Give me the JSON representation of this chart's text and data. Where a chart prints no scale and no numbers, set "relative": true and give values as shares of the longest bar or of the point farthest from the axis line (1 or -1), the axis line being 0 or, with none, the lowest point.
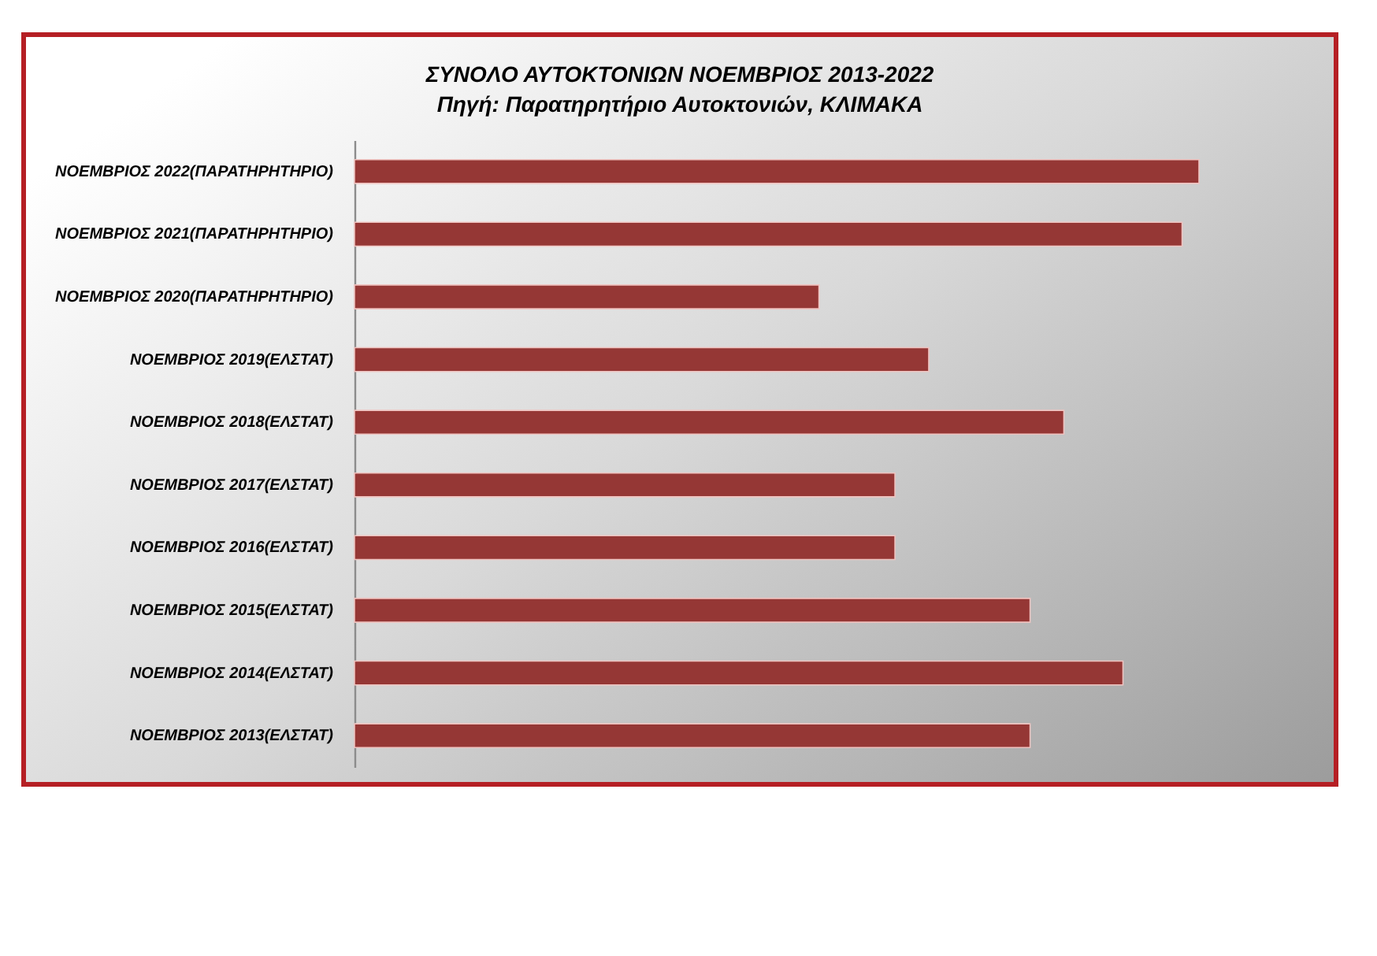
{
  "chart_data": {
    "type": "bar",
    "orientation": "horizontal",
    "relative": true,
    "title": "ΣΥΝΟΛΟ ΑΥΤΟΚΤΟΝΙΩΝ ΝΟΕΜΒΡΙΟΣ 2013-2022",
    "subtitle": "Πηγή: Παρατηρητήριο Αυτοκτονιών, ΚΛΙΜΑΚΑ",
    "categories": [
      "ΝΟΕΜΒΡΙΟΣ 2022(ΠΑΡΑΤΗΡΗΤΗΡΙΟ)",
      "ΝΟΕΜΒΡΙΟΣ 2021(ΠΑΡΑΤΗΡΗΤΗΡΙΟ)",
      "ΝΟΕΜΒΡΙΟΣ 2020(ΠΑΡΑΤΗΡΗΤΗΡΙΟ)",
      "ΝΟΕΜΒΡΙΟΣ 2019(ΕΛΣΤΑΤ)",
      "ΝΟΕΜΒΡΙΟΣ 2018(ΕΛΣΤΑΤ)",
      "ΝΟΕΜΒΡΙΟΣ 2017(ΕΛΣΤΑΤ)",
      "ΝΟΕΜΒΡΙΟΣ 2016(ΕΛΣΤΑΤ)",
      "ΝΟΕΜΒΡΙΟΣ 2015(ΕΛΣΤΑΤ)",
      "ΝΟΕΜΒΡΙΟΣ 2014(ΕΛΣΤΑΤ)",
      "ΝΟΕΜΒΡΙΟΣ 2013(ΕΛΣΤΑΤ)"
    ],
    "values": [
      1,
      0.98,
      0.55,
      0.68,
      0.84,
      0.64,
      0.64,
      0.8,
      0.91,
      0.8
    ],
    "color": "#953735"
  }
}
